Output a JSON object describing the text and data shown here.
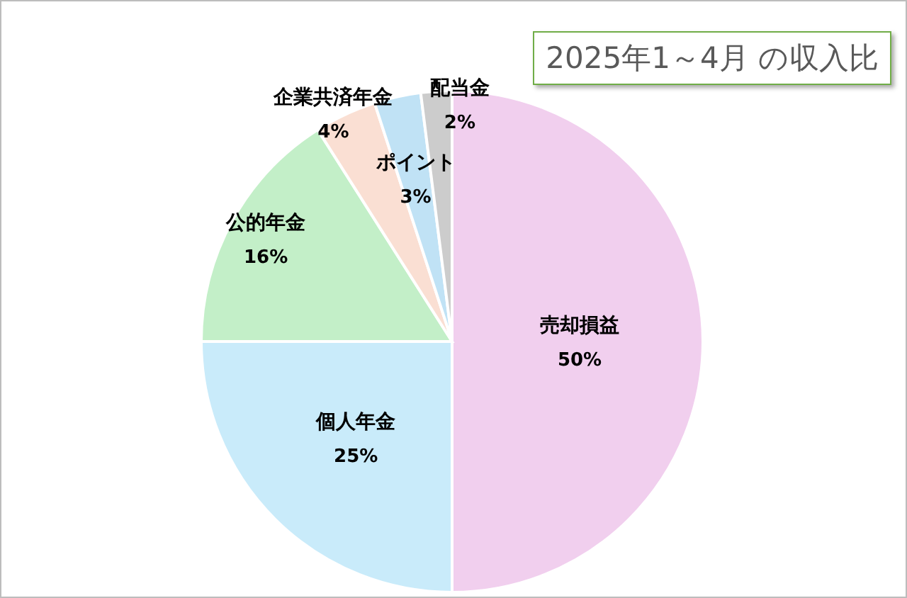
{
  "chart_data": {
    "type": "pie",
    "title": "2025年1～4月 の収入比",
    "categories": [
      "売却損益",
      "個人年金",
      "公的年金",
      "企業共済年金",
      "ポイント",
      "配当金"
    ],
    "values": [
      50,
      25,
      16,
      4,
      3,
      2
    ],
    "value_labels": [
      "50%",
      "25%",
      "16%",
      "4%",
      "3%",
      "2%"
    ],
    "colors": [
      "#f1cfee",
      "#c9ebfa",
      "#c3efc8",
      "#fadfd3",
      "#c0e2f5",
      "#cccccc"
    ],
    "legend": false
  }
}
